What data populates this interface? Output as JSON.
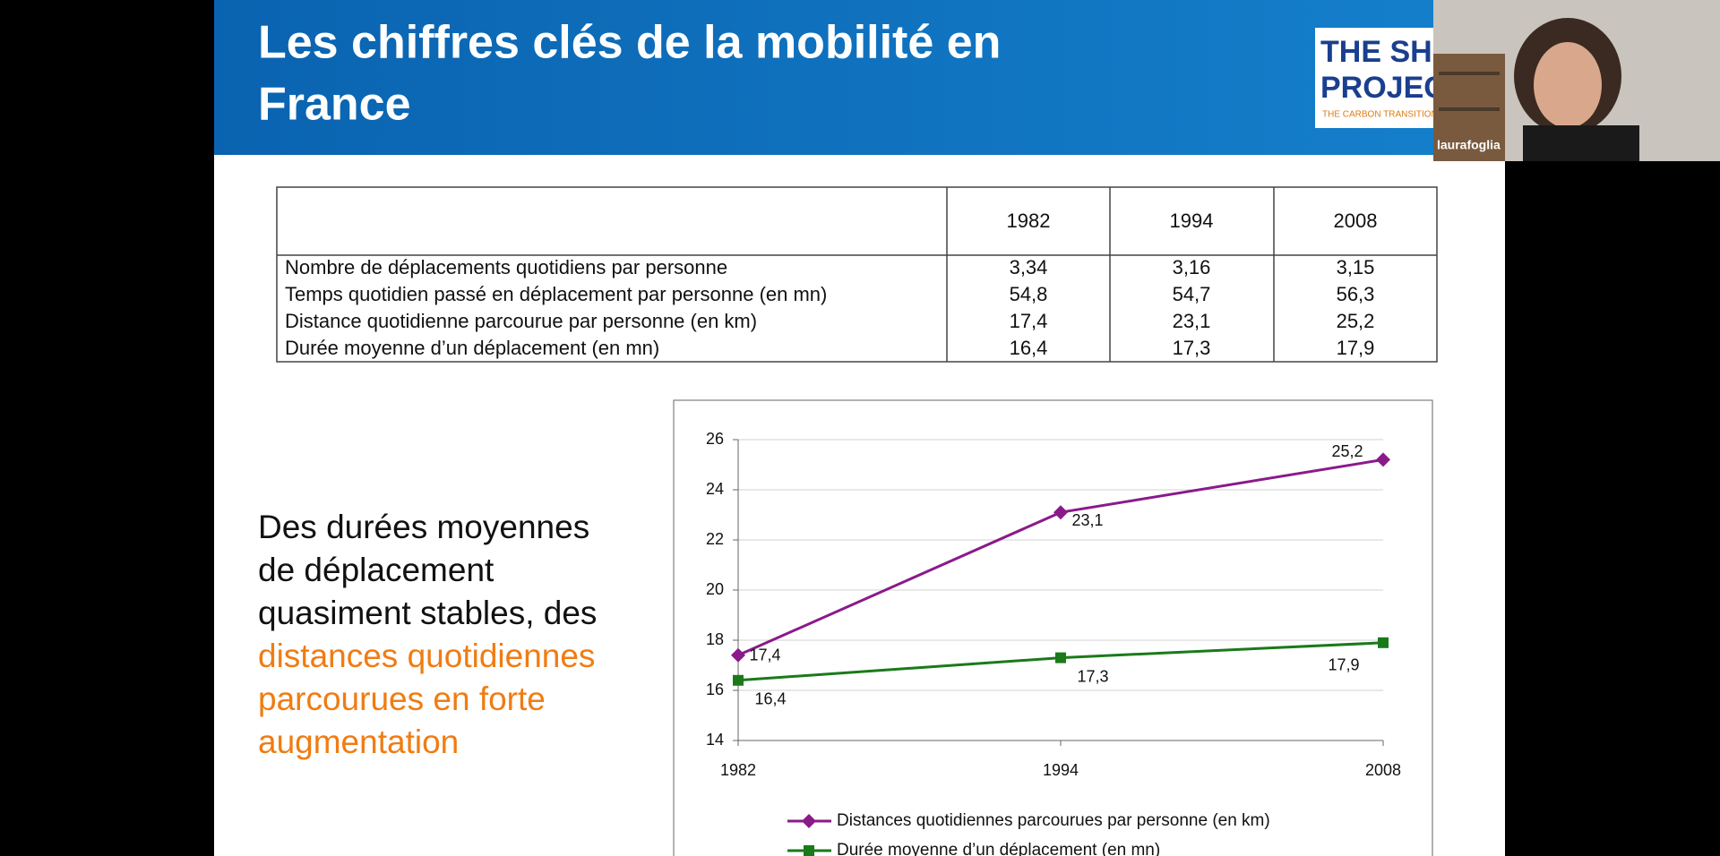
{
  "slide": {
    "title": [
      "Les chiffres clés de la mobilité en",
      "France"
    ],
    "logo": [
      "THE SHIFT",
      "PROJECT",
      "THE CARBON TRANSITION THINK TANK"
    ]
  },
  "table": {
    "header": [
      "1982",
      "1994",
      "2008"
    ],
    "rows": [
      {
        "label": "Nombre de déplacements quotidiens par personne",
        "values": [
          "3,34",
          "3,16",
          "3,15"
        ]
      },
      {
        "label": "Temps quotidien passé en déplacement par personne (en mn)",
        "values": [
          "54,8",
          "54,7",
          "56,3"
        ]
      },
      {
        "label": "Distance quotidienne parcourue par personne (en km)",
        "values": [
          "17,4",
          "23,1",
          "25,2"
        ]
      },
      {
        "label": "Durée moyenne d’un déplacement (en mn)",
        "values": [
          "16,4",
          "17,3",
          "17,9"
        ]
      }
    ]
  },
  "paragraph": {
    "black": [
      "Des durées moyennes",
      "de déplacement",
      "quasiment stables, des"
    ],
    "orange": [
      "distances quotidiennes",
      "parcourues en forte",
      "augmentation"
    ]
  },
  "chart_data": {
    "type": "line",
    "categories": [
      "1982",
      "1994",
      "2008"
    ],
    "series": [
      {
        "name": "Distances quotidiennes parcourues par personne (en km)",
        "color": "#8a1a8a",
        "marker": "diamond",
        "values": [
          17.4,
          23.1,
          25.2
        ],
        "value_labels": [
          "17,4",
          "23,1",
          "25,2"
        ]
      },
      {
        "name": "Durée moyenne d’un déplacement (en mn)",
        "color": "#1a7a1a",
        "marker": "square",
        "values": [
          16.4,
          17.3,
          17.9
        ],
        "value_labels": [
          "16,4",
          "17,3",
          "17,9"
        ]
      }
    ],
    "ylim": [
      14,
      26
    ],
    "yticks": [
      14,
      16,
      18,
      20,
      22,
      24,
      26
    ],
    "grid": true
  },
  "webcam": {
    "name": "laurafoglia"
  }
}
